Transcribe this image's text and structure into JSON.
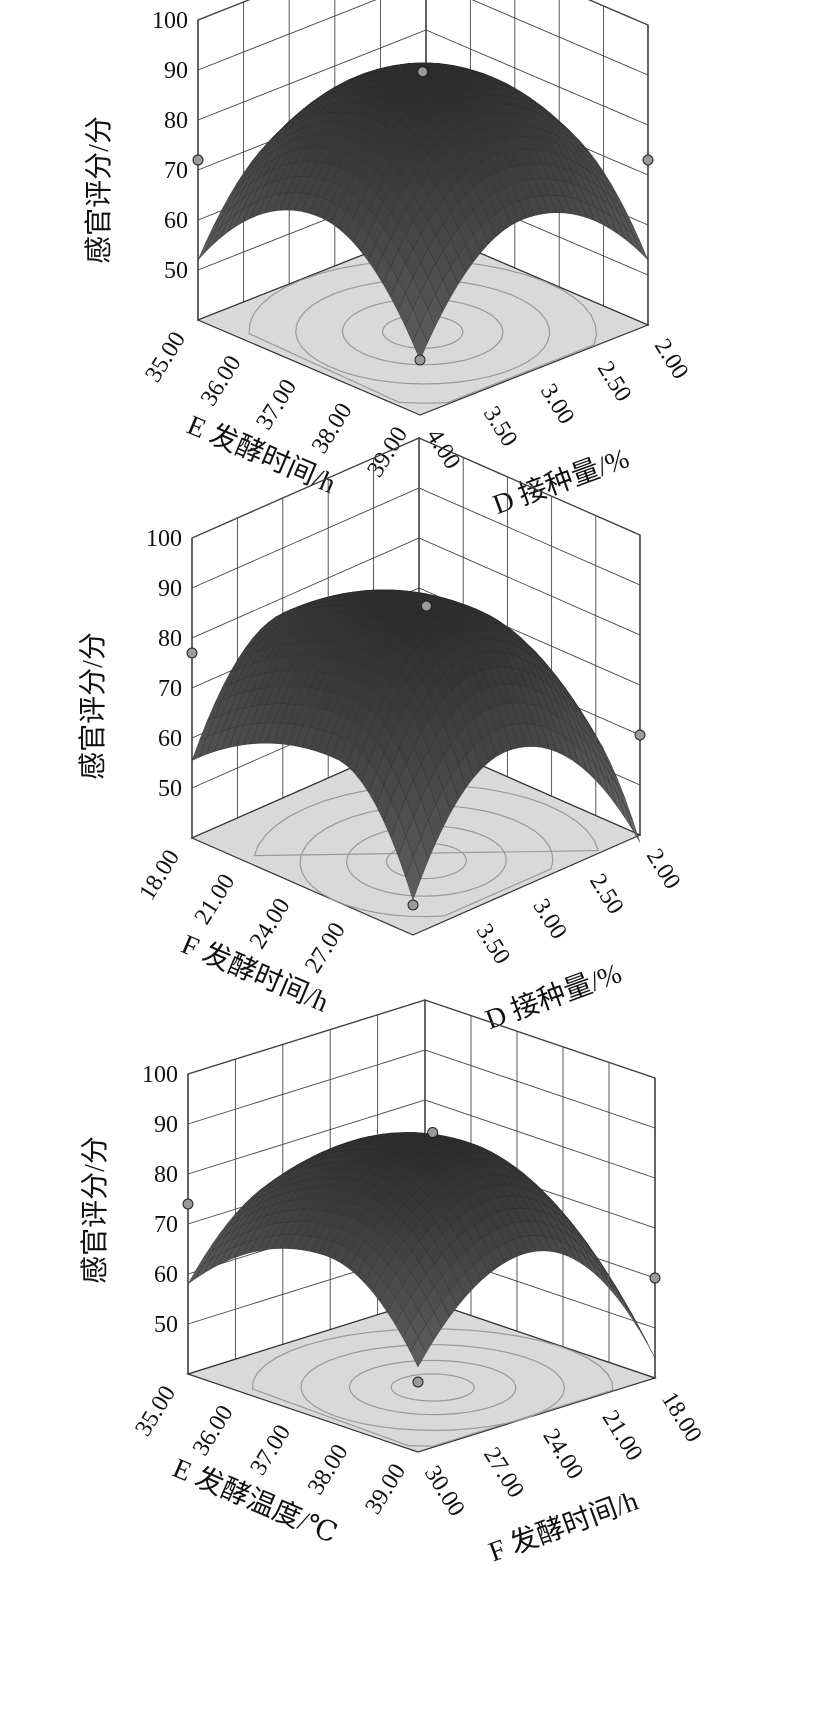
{
  "chart_data": [
    {
      "type": "surface3d",
      "z_label": "感官评分/分",
      "z_ticks": [
        "100",
        "90",
        "80",
        "70",
        "60",
        "50"
      ],
      "z_range": [
        40,
        100
      ],
      "left_axis": {
        "label": "E 发酵时间/h",
        "ticks": [
          "35.00",
          "36.00",
          "37.00",
          "38.00",
          "39.00"
        ],
        "range": [
          35,
          39
        ]
      },
      "right_axis": {
        "label": "D 接种量/%",
        "ticks": [
          "2.00",
          "2.50",
          "3.00",
          "3.50",
          "4.00"
        ],
        "range": [
          2,
          4
        ]
      },
      "surface": {
        "peak": 91,
        "peak_u": 0.45,
        "peak_v": 0.45,
        "corner_left": 72,
        "corner_right": 73,
        "corner_front": 51
      },
      "design_points": [
        {
          "corner": "left",
          "z": 72
        },
        {
          "corner": "right",
          "z": 73
        },
        {
          "corner": "front",
          "z": 51
        },
        {
          "corner": "center",
          "z": 92
        }
      ]
    },
    {
      "type": "surface3d",
      "z_label": "感官评分/分",
      "z_ticks": [
        "100",
        "90",
        "80",
        "70",
        "60",
        "50"
      ],
      "z_range": [
        40,
        100
      ],
      "left_axis": {
        "label": "F 发酵时间/h",
        "ticks": [
          "18.00",
          "21.00",
          "24.00",
          "27.00"
        ],
        "range": [
          18,
          30
        ]
      },
      "right_axis": {
        "label": "D 接种量/%",
        "ticks": [
          "2.00",
          "2.50",
          "3.00",
          "3.50"
        ],
        "range": [
          2,
          4
        ]
      },
      "surface": {
        "peak": 90,
        "peak_u": 0.35,
        "peak_v": 0.4,
        "corner_left": 77,
        "corner_right": 60,
        "corner_front": 47
      },
      "design_points": [
        {
          "corner": "left",
          "z": 77
        },
        {
          "corner": "right",
          "z": 60
        },
        {
          "corner": "front",
          "z": 46
        },
        {
          "corner": "center",
          "z": 91
        }
      ]
    },
    {
      "type": "surface3d",
      "z_label": "感官评分/分",
      "z_ticks": [
        "100",
        "90",
        "80",
        "70",
        "60",
        "50"
      ],
      "z_range": [
        40,
        100
      ],
      "left_axis": {
        "label": "E 发酵温度/℃",
        "ticks": [
          "35.00",
          "36.00",
          "37.00",
          "38.00",
          "39.00"
        ],
        "range": [
          35,
          39
        ]
      },
      "right_axis": {
        "label": "F 发酵时间/h",
        "ticks": [
          "18.00",
          "21.00",
          "24.00",
          "27.00",
          "30.00"
        ],
        "range": [
          18,
          30
        ]
      },
      "surface": {
        "peak": 89,
        "peak_u": 0.4,
        "peak_v": 0.45,
        "corner_left": 74,
        "corner_right": 60,
        "corner_front": 57
      },
      "design_points": [
        {
          "corner": "left",
          "z": 74
        },
        {
          "corner": "right",
          "z": 60
        },
        {
          "corner": "front",
          "z": 54
        },
        {
          "corner": "center",
          "z": 91
        }
      ]
    }
  ]
}
